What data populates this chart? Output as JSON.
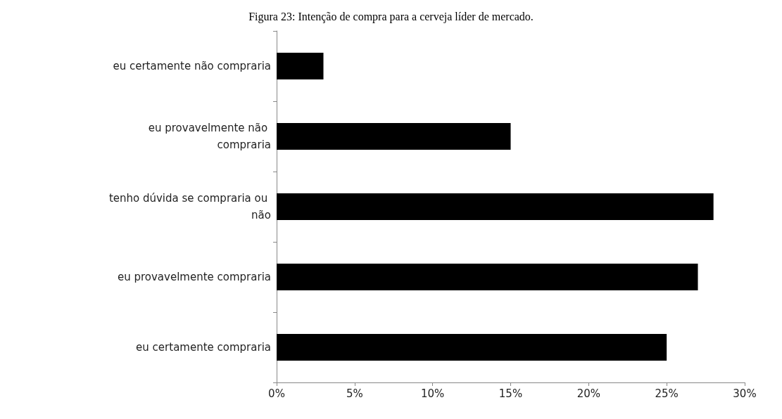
{
  "chart_data": {
    "type": "bar",
    "orientation": "horizontal",
    "title": "Figura 23: Intenção de compra para a cerveja líder de mercado.",
    "categories": [
      "eu certamente não compraria",
      "eu provavelmente não compraria",
      "tenho dúvida se compraria ou não",
      "eu provavelmente compraria",
      "eu certamente compraria"
    ],
    "values": [
      3,
      15,
      28,
      27,
      25
    ],
    "color": "#000000",
    "xlim": [
      0,
      30
    ],
    "xticks": [
      {
        "value": 0,
        "label": "0%"
      },
      {
        "value": 5,
        "label": "5%"
      },
      {
        "value": 10,
        "label": "10%"
      },
      {
        "value": 15,
        "label": "15%"
      },
      {
        "value": 20,
        "label": "20%"
      },
      {
        "value": 25,
        "label": "25%"
      },
      {
        "value": 30,
        "label": "30%"
      }
    ],
    "grid": false
  }
}
